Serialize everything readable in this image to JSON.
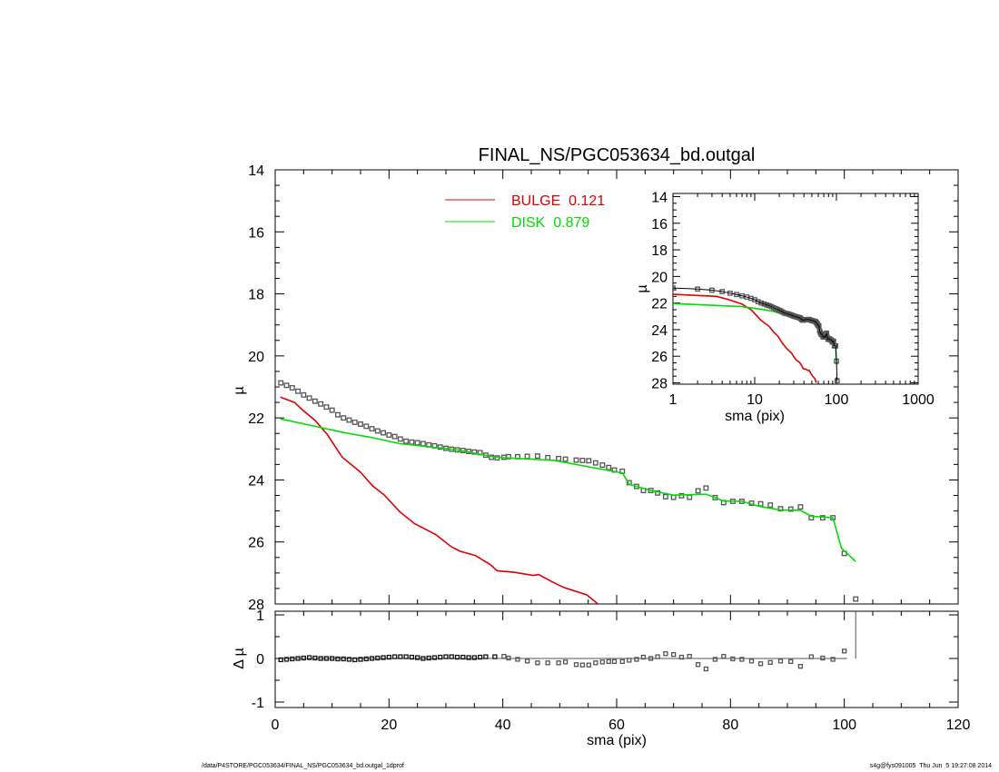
{
  "chart_data": [
    {
      "type": "line",
      "title": "FINAL_NS/PGC053634_bd.outgal",
      "xlabel": "sma (pix)",
      "ylabel": "µ",
      "xlim": [
        0,
        120
      ],
      "ylim": [
        14,
        28
      ],
      "y_inverted": true,
      "x_ticks": [
        "0",
        "20",
        "40",
        "60",
        "80",
        "100",
        "120"
      ],
      "y_ticks": [
        "14",
        "16",
        "18",
        "20",
        "22",
        "24",
        "26",
        "28"
      ],
      "legend_placement": "top-center",
      "series": [
        {
          "name": "BULGE",
          "fraction": "0.121",
          "label": "BULGE  0.121",
          "color": "#e00000",
          "style": "line",
          "x": [
            0.9,
            3.4,
            4.8,
            7,
            9.1,
            11.8,
            15,
            17.1,
            19.2,
            21.9,
            24.5,
            28.2,
            30.9,
            32.5,
            35.2,
            37.8,
            39,
            42.1,
            45.3,
            46.3,
            48.5,
            50.6,
            54.8,
            56.7
          ],
          "y": [
            21.33,
            21.5,
            21.74,
            22.08,
            22.52,
            23.27,
            23.75,
            24.19,
            24.49,
            25.03,
            25.41,
            25.76,
            26.15,
            26.3,
            26.44,
            26.73,
            26.93,
            26.98,
            27.08,
            27.05,
            27.27,
            27.46,
            27.71,
            28.0
          ]
        },
        {
          "name": "DISK",
          "fraction": "0.879",
          "label": "DISK  0.879",
          "color": "#00dd00",
          "style": "line",
          "x": [
            0.9,
            7,
            12.3,
            16.9,
            21.9,
            31.5,
            38.9,
            49,
            60.2,
            61,
            62.2,
            66,
            70,
            75.7,
            77.3,
            78.8,
            82,
            85,
            88.8,
            92.3,
            94.2,
            98,
            99.5,
            102
          ],
          "y": [
            22.03,
            22.27,
            22.48,
            22.63,
            22.83,
            23.02,
            23.27,
            23.37,
            23.75,
            23.77,
            24.14,
            24.34,
            24.49,
            24.46,
            24.57,
            24.68,
            24.69,
            24.85,
            24.97,
            24.98,
            25.17,
            25.22,
            26.2,
            26.63
          ]
        },
        {
          "style": "open-square",
          "color": "#555555",
          "x": [
            1,
            2,
            3,
            4,
            5,
            6,
            7,
            8,
            9,
            10,
            11,
            12,
            13,
            14,
            15,
            16,
            17,
            18,
            19,
            20,
            21,
            22,
            23,
            24,
            25,
            26,
            27,
            28,
            29,
            30,
            31,
            32,
            33,
            34,
            35,
            36,
            37,
            38,
            39,
            40.2,
            41,
            42.6,
            44.3,
            46.1,
            47.9,
            49.8,
            51,
            52.9,
            54,
            55.1,
            56.3,
            57.5,
            58.6,
            59.6,
            61,
            62.2,
            63.5,
            64.7,
            66,
            67.2,
            68.6,
            70,
            71.4,
            72.8,
            74.3,
            75.7,
            77.3,
            78.8,
            80.4,
            82,
            83.7,
            85.3,
            87,
            88.8,
            90.6,
            92.3,
            94.2,
            96.2,
            98,
            100,
            102
          ],
          "y": [
            20.87,
            20.95,
            21.03,
            21.14,
            21.26,
            21.36,
            21.46,
            21.55,
            21.65,
            21.75,
            21.9,
            22.0,
            22.07,
            22.14,
            22.2,
            22.27,
            22.35,
            22.42,
            22.48,
            22.55,
            22.6,
            22.68,
            22.75,
            22.78,
            22.8,
            22.83,
            22.87,
            22.9,
            22.94,
            22.98,
            23.01,
            23.03,
            23.05,
            23.08,
            23.1,
            23.12,
            23.2,
            23.27,
            23.29,
            23.27,
            23.25,
            23.25,
            23.24,
            23.23,
            23.28,
            23.31,
            23.33,
            23.36,
            23.37,
            23.38,
            23.45,
            23.52,
            23.6,
            23.68,
            23.72,
            24.09,
            24.21,
            24.34,
            24.34,
            24.42,
            24.54,
            24.56,
            24.51,
            24.56,
            24.35,
            24.26,
            24.57,
            24.73,
            24.69,
            24.69,
            24.75,
            24.77,
            24.81,
            24.93,
            24.94,
            24.87,
            25.22,
            25.22,
            25.22,
            26.37,
            27.84
          ]
        }
      ]
    },
    {
      "type": "scatter",
      "xlabel": "sma (pix)",
      "ylabel": "Δ µ",
      "xlim": [
        0,
        120
      ],
      "ylim": [
        -1,
        1
      ],
      "y_ticks": [
        "1",
        "0",
        "-1"
      ],
      "zero_line": true,
      "x": [
        1,
        2,
        3,
        4,
        5,
        6,
        7,
        8,
        9,
        10,
        11,
        12,
        13,
        14,
        15,
        16,
        17,
        18,
        19,
        20,
        21,
        22,
        23,
        24,
        25,
        26,
        27,
        28,
        29,
        30,
        31,
        32,
        33,
        34,
        35,
        36,
        37,
        38.6,
        40.2,
        41,
        42.6,
        44.3,
        46.1,
        47.9,
        49.8,
        51,
        52.9,
        54,
        55.1,
        56.3,
        57.5,
        58.6,
        59.6,
        61,
        62.2,
        63.5,
        64.7,
        66,
        67.2,
        68.6,
        70,
        71.4,
        72.8,
        74.3,
        75.7,
        77.3,
        78.8,
        80.4,
        82,
        83.7,
        85.3,
        87,
        88.8,
        90.6,
        92.3,
        94.2,
        96.2,
        98,
        100
      ],
      "y": [
        -0.03,
        -0.02,
        -0.01,
        0.0,
        0.01,
        0.02,
        0.01,
        0.0,
        0.0,
        0.0,
        -0.01,
        -0.01,
        -0.02,
        -0.03,
        -0.02,
        -0.01,
        0.0,
        0.01,
        0.02,
        0.03,
        0.04,
        0.04,
        0.04,
        0.03,
        0.02,
        0.0,
        0.01,
        0.02,
        0.03,
        0.04,
        0.04,
        0.03,
        0.03,
        0.02,
        0.02,
        0.03,
        0.04,
        0.04,
        0.05,
        0.01,
        -0.02,
        -0.06,
        -0.1,
        -0.1,
        -0.1,
        -0.08,
        -0.14,
        -0.15,
        -0.15,
        -0.1,
        -0.08,
        -0.07,
        -0.07,
        -0.07,
        -0.04,
        -0.02,
        0.03,
        0.0,
        0.04,
        0.11,
        0.09,
        0.03,
        0.05,
        -0.14,
        -0.24,
        -0.02,
        0.05,
        -0.01,
        -0.02,
        -0.06,
        -0.12,
        -0.09,
        -0.06,
        -0.07,
        -0.18,
        0.04,
        0.01,
        -0.02,
        0.17
      ],
      "offscale_point_x": 102
    },
    {
      "type": "line",
      "inset": true,
      "xlabel": "sma (pix)",
      "ylabel": "µ",
      "x_scale": "log",
      "xlim": [
        1,
        1000
      ],
      "ylim": [
        14,
        28
      ],
      "y_inverted": true,
      "x_ticks": [
        "1",
        "10",
        "100",
        "1000"
      ],
      "y_ticks": [
        "14",
        "16",
        "18",
        "20",
        "22",
        "24",
        "26",
        "28"
      ],
      "note": "same series as main panel on log axis"
    }
  ],
  "footer": {
    "left": "/data/P4STORE/PGC053634/FINAL_NS/PGC053634_bd.outgal_1dprof",
    "right": "s4g@fys091005  Thu Jun  5 19:27:08 2014"
  }
}
